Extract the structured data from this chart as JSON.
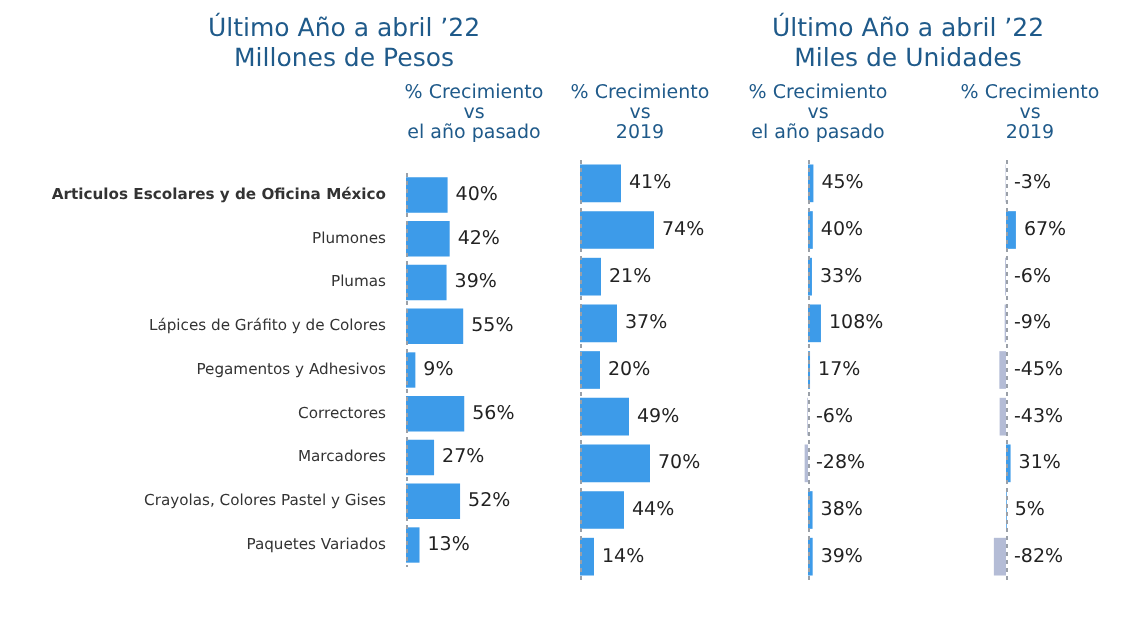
{
  "chart_data": [
    {
      "type": "bar",
      "orientation": "horizontal",
      "title": "Último Año a abril ’22\nMillones de Pesos",
      "subtitle": "% Crecimiento\nvs\nel año pasado",
      "categories": [
        "Articulos Escolares y de Oficina México",
        "Plumones",
        "Plumas",
        "Lápices de Gráfito y de Colores",
        "Pegamentos y Adhesivos",
        "Correctores",
        "Marcadores",
        "Crayolas, Colores Pastel y Gises",
        "Paquetes Variados"
      ],
      "values": [
        40,
        42,
        39,
        55,
        9,
        56,
        27,
        52,
        13
      ],
      "colors": [
        "#3d9be9",
        "#3d9be9",
        "#3d9be9",
        "#3d9be9",
        "#3d9be9",
        "#3d9be9",
        "#3d9be9",
        "#3d9be9",
        "#3d9be9"
      ],
      "value_labels": [
        "40%",
        "42%",
        "39%",
        "55%",
        "9%",
        "56%",
        "27%",
        "52%",
        "13%"
      ],
      "ref_lines": [
        {
          "axis": "x",
          "value": 0,
          "color": "#9aa0a8",
          "line_style": "dashed"
        }
      ],
      "tick_labels": "y"
    },
    {
      "type": "bar",
      "orientation": "horizontal",
      "subtitle": "% Crecimiento\nvs\n2019",
      "categories": [
        null,
        null,
        null,
        null,
        null,
        null,
        null,
        null,
        null
      ],
      "values": [
        41,
        74,
        21,
        37,
        20,
        49,
        70,
        44,
        14
      ],
      "colors": [
        "#3d9be9",
        "#3d9be9",
        "#3d9be9",
        "#3d9be9",
        "#3d9be9",
        "#3d9be9",
        "#3d9be9",
        "#3d9be9",
        "#3d9be9"
      ],
      "value_labels": [
        "41%",
        "74%",
        "21%",
        "37%",
        "20%",
        "49%",
        "70%",
        "44%",
        "14%"
      ],
      "ref_lines": [
        {
          "axis": "x",
          "value": 0,
          "color": "#9aa0a8",
          "line_style": "dashed"
        }
      ],
      "tick_labels": false
    },
    {
      "type": "bar",
      "orientation": "horizontal",
      "title": "Último Año a abril ’22\nMiles de Unidades",
      "subtitle": "% Crecimiento\nvs\nel año pasado",
      "categories": [
        null,
        null,
        null,
        null,
        null,
        null,
        null,
        null,
        null
      ],
      "values": [
        45,
        40,
        33,
        108,
        17,
        -6,
        -28,
        38,
        39
      ],
      "colors": [
        "#3d9be9",
        "#3d9be9",
        "#3d9be9",
        "#3d9be9",
        "#3d9be9",
        "#b4bcd6",
        "#b4bcd6",
        "#3d9be9",
        "#3d9be9"
      ],
      "value_labels": [
        "45%",
        "40%",
        "33%",
        "108%",
        "17%",
        "-6%",
        "-28%",
        "38%",
        "39%"
      ],
      "ref_lines": [
        {
          "axis": "x",
          "value": 0,
          "color": "#9aa0a8",
          "line_style": "dashed"
        }
      ],
      "tick_labels": false
    },
    {
      "type": "bar",
      "orientation": "horizontal",
      "subtitle": "% Crecimiento\nvs\n2019",
      "categories": [
        null,
        null,
        null,
        null,
        null,
        null,
        null,
        null,
        null
      ],
      "values": [
        -3,
        67,
        -6,
        -9,
        -45,
        -43,
        31,
        5,
        -82
      ],
      "colors": [
        "#b4bcd6",
        "#3d9be9",
        "#b4bcd6",
        "#b4bcd6",
        "#b4bcd6",
        "#b4bcd6",
        "#3d9be9",
        "#3d9be9",
        "#b4bcd6"
      ],
      "value_labels": [
        "-3%",
        "67%",
        "-6%",
        "-9%",
        "-45%",
        "-43%",
        "31%",
        "5%",
        "-82%"
      ],
      "ref_lines": [
        {
          "axis": "x",
          "value": 0,
          "color": "#9aa0a8",
          "line_style": "dashed"
        }
      ],
      "tick_labels": false
    }
  ]
}
